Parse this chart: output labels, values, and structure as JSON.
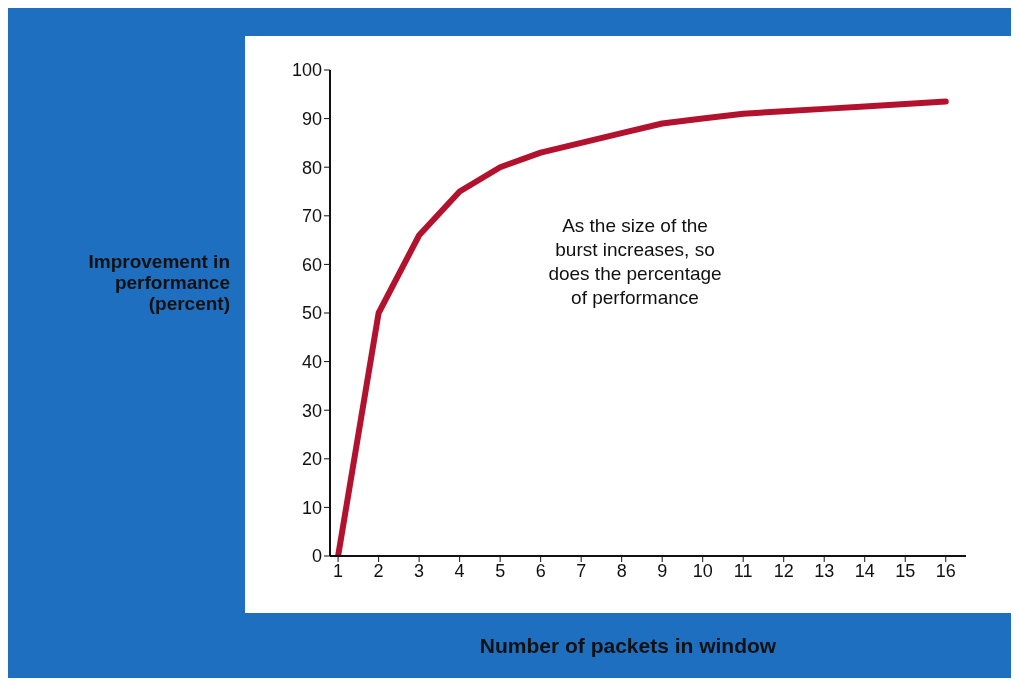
{
  "chart_data": {
    "type": "line",
    "xlabel": "Number of packets in window",
    "ylabel": "Improvement in performance (percent)",
    "annotations": [
      "As the size of the burst increases, so does the percentage of performance"
    ],
    "x": [
      1,
      2,
      3,
      4,
      5,
      6,
      7,
      8,
      9,
      10,
      11,
      12,
      13,
      14,
      15,
      16
    ],
    "series": [
      {
        "color": "#b3122e",
        "values": [
          0,
          50,
          66,
          75,
          80,
          83,
          85,
          87,
          89,
          90,
          91,
          91.5,
          92,
          92.5,
          93,
          93.5
        ]
      }
    ],
    "xlim": [
      0.8,
      16.5
    ],
    "xticks": [
      1,
      2,
      3,
      4,
      5,
      6,
      7,
      8,
      9,
      10,
      11,
      12,
      13,
      14,
      15,
      16
    ],
    "ylim": [
      0,
      100
    ],
    "yticks": [
      0,
      10,
      20,
      30,
      40,
      50,
      60,
      70,
      80,
      90,
      100
    ],
    "grid": false,
    "legend": false,
    "marker": "none",
    "line_style": "solid"
  }
}
